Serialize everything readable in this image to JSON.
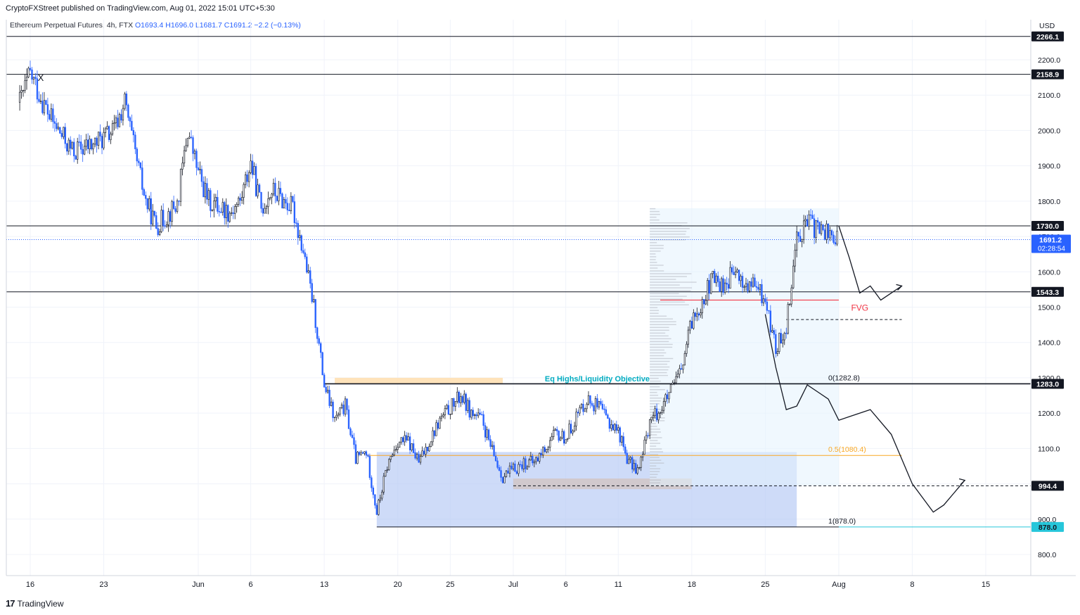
{
  "header": {
    "publisher_line": "CryptoFXStreet published on TradingView.com, Aug 01, 2022 15:01 UTC+5:30"
  },
  "legend": {
    "symbol": "Ethereum Perpetual Futures, 4h, FTX",
    "open": "O1693.4",
    "high": "H1696.0",
    "low": "L1681.7",
    "close": "C1691.2",
    "change": "−2.2 (−0.13%)"
  },
  "footer": {
    "brand": "TradingView",
    "logo_text": "17"
  },
  "colors": {
    "up": "#131722",
    "down": "#2962ff",
    "level": "#131722",
    "fvg": "#f23645",
    "fib_mid": "#f9a825",
    "fib_low_line": "#26c6da",
    "zone_blue": "#b3c8f5",
    "zone_orange": "#ffe0b2",
    "zone_gray": "#d1c6c6",
    "volume_profile": "#b2b5be",
    "range_shade": "#e3f2fd"
  },
  "chart_data": {
    "type": "candlestick",
    "currency": "USD",
    "timeframe": "4h",
    "x_ticks": [
      "16",
      "23",
      "Jun",
      "6",
      "13",
      "20",
      "25",
      "Jul",
      "6",
      "11",
      "18",
      "25",
      "Aug",
      "8",
      "15"
    ],
    "y_ticks": [
      800,
      900,
      1000,
      1100,
      1200,
      1300,
      1400,
      1500,
      1600,
      1700,
      1800,
      1900,
      2000,
      2100,
      2200
    ],
    "y_range": [
      750,
      2310
    ],
    "price_path_anchors": [
      {
        "x": "May 15",
        "y": 2080
      },
      {
        "x": "May 16",
        "y": 2160
      },
      {
        "x": "May 18",
        "y": 2030
      },
      {
        "x": "May 20",
        "y": 1940
      },
      {
        "x": "May 22",
        "y": 1960
      },
      {
        "x": "May 24",
        "y": 2000
      },
      {
        "x": "May 25",
        "y": 2080
      },
      {
        "x": "May 26",
        "y": 1930
      },
      {
        "x": "May 27",
        "y": 1800
      },
      {
        "x": "May 28",
        "y": 1730
      },
      {
        "x": "May 30",
        "y": 1790
      },
      {
        "x": "May 31",
        "y": 2000
      },
      {
        "x": "Jun 1",
        "y": 1880
      },
      {
        "x": "Jun 2",
        "y": 1800
      },
      {
        "x": "Jun 4",
        "y": 1770
      },
      {
        "x": "Jun 5",
        "y": 1800
      },
      {
        "x": "Jun 6",
        "y": 1910
      },
      {
        "x": "Jun 7",
        "y": 1780
      },
      {
        "x": "Jun 8",
        "y": 1830
      },
      {
        "x": "Jun 10",
        "y": 1780
      },
      {
        "x": "Jun 11",
        "y": 1660
      },
      {
        "x": "Jun 12",
        "y": 1500
      },
      {
        "x": "Jun 13",
        "y": 1280
      },
      {
        "x": "Jun 14",
        "y": 1180
      },
      {
        "x": "Jun 15",
        "y": 1220
      },
      {
        "x": "Jun 16",
        "y": 1070
      },
      {
        "x": "Jun 17",
        "y": 1090
      },
      {
        "x": "Jun 18",
        "y": 920
      },
      {
        "x": "Jun 19",
        "y": 1050
      },
      {
        "x": "Jun 20",
        "y": 1120
      },
      {
        "x": "Jun 21",
        "y": 1120
      },
      {
        "x": "Jun 22",
        "y": 1060
      },
      {
        "x": "Jun 24",
        "y": 1180
      },
      {
        "x": "Jun 26",
        "y": 1250
      },
      {
        "x": "Jun 27",
        "y": 1200
      },
      {
        "x": "Jun 28",
        "y": 1180
      },
      {
        "x": "Jun 29",
        "y": 1090
      },
      {
        "x": "Jun 30",
        "y": 1020
      },
      {
        "x": "Jul 2",
        "y": 1060
      },
      {
        "x": "Jul 3",
        "y": 1060
      },
      {
        "x": "Jul 4",
        "y": 1100
      },
      {
        "x": "Jul 5",
        "y": 1140
      },
      {
        "x": "Jul 6",
        "y": 1130
      },
      {
        "x": "Jul 7",
        "y": 1190
      },
      {
        "x": "Jul 8",
        "y": 1240
      },
      {
        "x": "Jul 9",
        "y": 1220
      },
      {
        "x": "Jul 10",
        "y": 1180
      },
      {
        "x": "Jul 11",
        "y": 1150
      },
      {
        "x": "Jul 12",
        "y": 1060
      },
      {
        "x": "Jul 13",
        "y": 1040
      },
      {
        "x": "Jul 14",
        "y": 1180
      },
      {
        "x": "Jul 15",
        "y": 1210
      },
      {
        "x": "Jul 16",
        "y": 1260
      },
      {
        "x": "Jul 17",
        "y": 1320
      },
      {
        "x": "Jul 18",
        "y": 1460
      },
      {
        "x": "Jul 19",
        "y": 1520
      },
      {
        "x": "Jul 20",
        "y": 1580
      },
      {
        "x": "Jul 21",
        "y": 1560
      },
      {
        "x": "Jul 22",
        "y": 1600
      },
      {
        "x": "Jul 23",
        "y": 1560
      },
      {
        "x": "Jul 24",
        "y": 1560
      },
      {
        "x": "Jul 25",
        "y": 1520
      },
      {
        "x": "Jul 26",
        "y": 1380
      },
      {
        "x": "Jul 27",
        "y": 1450
      },
      {
        "x": "Jul 28",
        "y": 1700
      },
      {
        "x": "Jul 29",
        "y": 1740
      },
      {
        "x": "Jul 30",
        "y": 1720
      },
      {
        "x": "Jul 31",
        "y": 1710
      },
      {
        "x": "Aug 1",
        "y": 1691
      }
    ],
    "last_price": {
      "value": "1691.2",
      "countdown": "02:28:54"
    },
    "horizontal_levels": [
      {
        "label": "2266.1",
        "value": 2266.1
      },
      {
        "label": "2158.9",
        "value": 2158.9
      },
      {
        "label": "1730.0",
        "value": 1730.0
      },
      {
        "label": "1543.3",
        "value": 1543.3
      },
      {
        "label": "1283.0",
        "value": 1283.0
      },
      {
        "label": "994.4",
        "value": 994.4,
        "style": "dashed"
      },
      {
        "label": "878.0",
        "value": 878.0
      }
    ],
    "fib_levels": [
      {
        "label": "0(1282.8)",
        "value": 1282.8
      },
      {
        "label": "0.5(1080.4)",
        "value": 1080.4
      },
      {
        "label": "1(878.0)",
        "value": 878.0
      }
    ],
    "annotations": [
      {
        "text": "Eq Highs/Liquidity Objective",
        "x": "Jul 9",
        "y": 1290
      },
      {
        "text": "FVG",
        "x": "Aug 3",
        "y": 1490
      },
      {
        "text": "X",
        "x": "May 17",
        "y": 2140
      }
    ],
    "fvg_line": {
      "value": 1520,
      "from": "Jul 15",
      "to": "Aug 1"
    },
    "fvg_dashed": {
      "value": 1465,
      "from": "Jul 27",
      "to": "Aug 7"
    },
    "zones": [
      {
        "name": "demand",
        "from": "Jun 18",
        "to": "Jul 28",
        "low": 878,
        "high": 1090
      },
      {
        "name": "supply-block",
        "from": "Jun 14",
        "to": "Jun 30",
        "low": 1283,
        "high": 1300
      },
      {
        "name": "gray-block",
        "from": "Jul 1",
        "to": "Jul 18",
        "low": 985,
        "high": 1015
      },
      {
        "name": "range",
        "from": "Jul 14",
        "to": "Aug 1",
        "low": 994,
        "high": 1780
      }
    ],
    "projection_upper": [
      {
        "x": "Aug 1",
        "y": 1730
      },
      {
        "x": "Aug 2",
        "y": 1640
      },
      {
        "x": "Aug 3",
        "y": 1540
      },
      {
        "x": "Aug 4",
        "y": 1560
      },
      {
        "x": "Aug 5",
        "y": 1520
      },
      {
        "x": "Aug 6",
        "y": 1540
      },
      {
        "x": "Aug 7",
        "y": 1560
      }
    ],
    "projection_lower": [
      {
        "x": "Jul 25",
        "y": 1480
      },
      {
        "x": "Jul 26",
        "y": 1330
      },
      {
        "x": "Jul 27",
        "y": 1210
      },
      {
        "x": "Jul 28",
        "y": 1220
      },
      {
        "x": "Jul 29",
        "y": 1280
      },
      {
        "x": "Jul 31",
        "y": 1240
      },
      {
        "x": "Aug 1",
        "y": 1180
      },
      {
        "x": "Aug 3",
        "y": 1200
      },
      {
        "x": "Aug 4",
        "y": 1210
      },
      {
        "x": "Aug 6",
        "y": 1140
      },
      {
        "x": "Aug 8",
        "y": 1000
      },
      {
        "x": "Aug 10",
        "y": 920
      },
      {
        "x": "Aug 11",
        "y": 940
      },
      {
        "x": "Aug 13",
        "y": 1010
      }
    ]
  }
}
